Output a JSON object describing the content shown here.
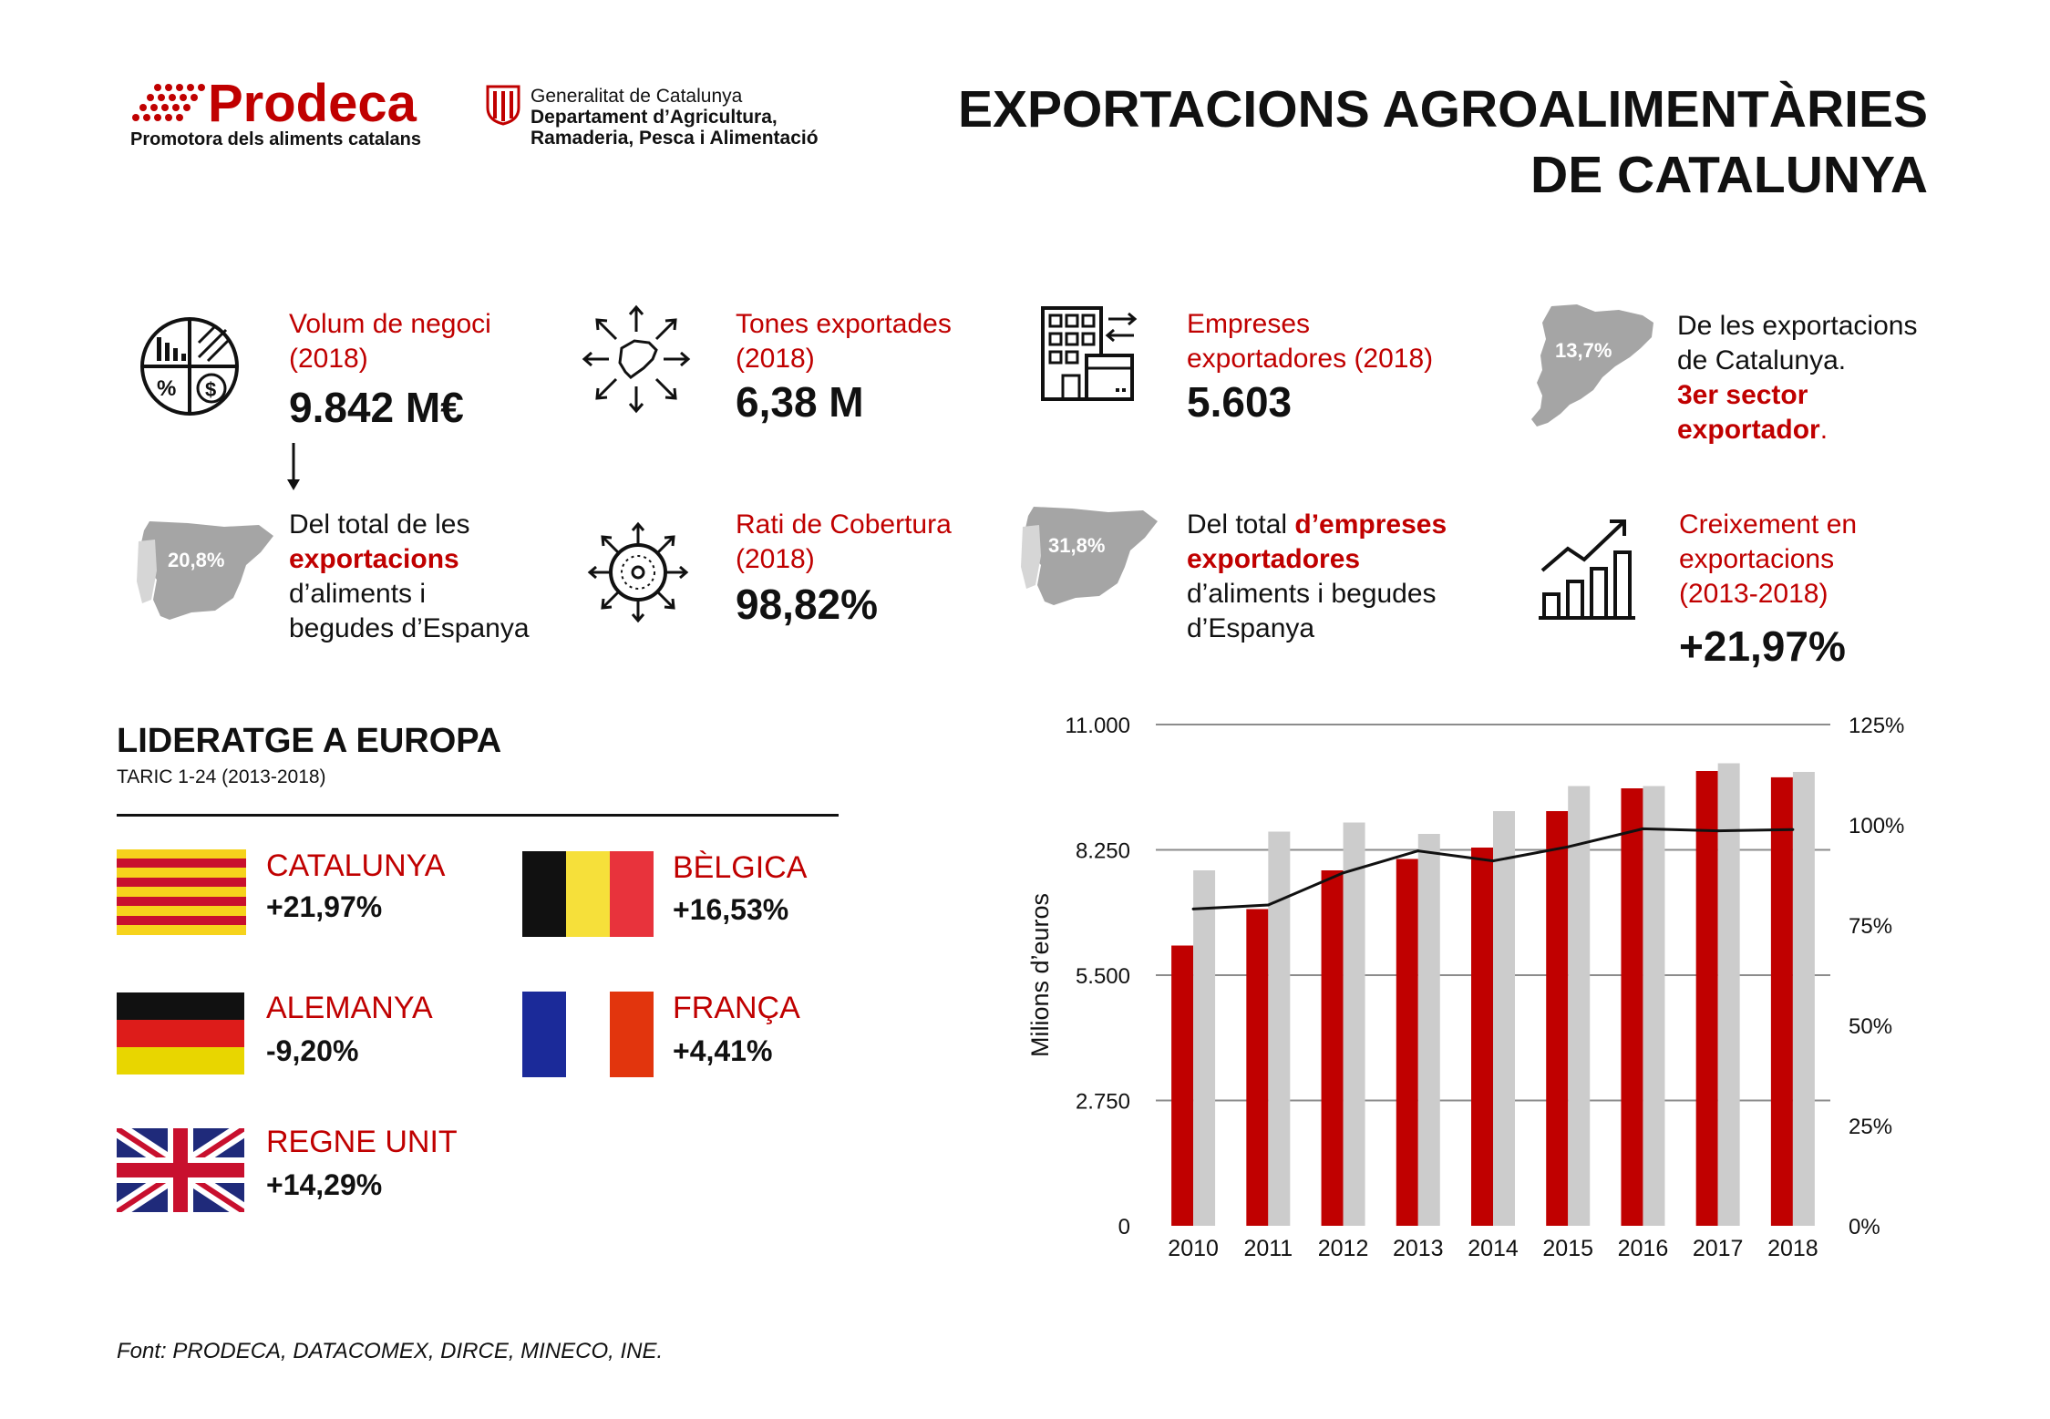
{
  "header": {
    "prodeca_name": "Prodeca",
    "prodeca_tagline": "Promotora dels aliments catalans",
    "gen_line1": "Generalitat de Catalunya",
    "gen_line2": "Departament d’Agricultura,",
    "gen_line3": "Ramaderia, Pesca i Alimentació",
    "title_line1": "EXPORTACIONS  AGROALIMENTÀRIES",
    "title_line2": "DE CATALUNYA"
  },
  "stats": {
    "volum": {
      "label1": "Volum de negoci",
      "label2": "(2018)",
      "value": "9.842 M€"
    },
    "tones": {
      "label1": "Tones exportades",
      "label2": "(2018)",
      "value": "6,38 M"
    },
    "empreses": {
      "label1": "Empreses",
      "label2": "exportadores (2018)",
      "value": "5.603"
    },
    "cat_share": {
      "badge": "13,7%",
      "line1": "De les exportacions",
      "line2": "de Catalunya.",
      "line3": "3er sector",
      "line4": "exportador",
      "line4_end": "."
    },
    "spain_share": {
      "badge": "20,8%",
      "line1": "Del total de les",
      "line2": "exportacions",
      "line3": "d’aliments i",
      "line4": "begudes d’Espanya"
    },
    "cobertura": {
      "label1": "Rati de Cobertura",
      "label2": "(2018)",
      "value": "98,82%"
    },
    "empreses_share": {
      "badge": "31,8%",
      "line1_a": "Del total ",
      "line1_b": "d’empreses",
      "line2": "exportadores",
      "line3": "d’aliments i begudes",
      "line4": "d’Espanya"
    },
    "creixement": {
      "label1": "Creixement en",
      "label2": "exportacions",
      "label3": "(2013-2018)",
      "value": "+21,97%"
    }
  },
  "leadership": {
    "title": "LIDERATGE A EUROPA",
    "subtitle": "TARIC 1-24 (2013-2018)",
    "countries": [
      {
        "name": "CATALUNYA",
        "growth": "+21,97%"
      },
      {
        "name": "BÈLGICA",
        "growth": "+16,53%"
      },
      {
        "name": "ALEMANYA",
        "growth": "-9,20%"
      },
      {
        "name": "FRANÇA",
        "growth": "+4,41%"
      },
      {
        "name": "REGNE UNIT",
        "growth": "+14,29%"
      }
    ]
  },
  "source": "Font: PRODECA, DATACOMEX, DIRCE, MINECO, INE.",
  "colors": {
    "accent": "#c00000",
    "bar_gray": "#cccccc"
  },
  "chart_data": {
    "type": "bar",
    "categories": [
      "2010",
      "2011",
      "2012",
      "2013",
      "2014",
      "2015",
      "2016",
      "2017",
      "2018"
    ],
    "series": [
      {
        "values": [
          6150,
          6950,
          7800,
          8050,
          8300,
          9100,
          9600,
          9980,
          9842
        ],
        "color": "#c00000"
      },
      {
        "values": [
          7800,
          8650,
          8850,
          8600,
          9100,
          9650,
          9650,
          10150,
          9960
        ],
        "color": "#cccccc"
      },
      {
        "type": "line",
        "axis": "right",
        "values": [
          79,
          80,
          88,
          93.5,
          91,
          94.5,
          99,
          98.5,
          98.82
        ],
        "color": "#111111"
      }
    ],
    "ylabel": "Milions d’euros",
    "ylim": [
      0,
      11000
    ],
    "y_ticks": [
      "0",
      "2.750",
      "5.500",
      "8.250",
      "11.000"
    ],
    "y_tick_values": [
      0,
      2750,
      5500,
      8250,
      11000
    ],
    "y2lim": [
      0,
      125
    ],
    "y2_ticks": [
      "0%",
      "25%",
      "50%",
      "75%",
      "100%",
      "125%"
    ],
    "y2_tick_values": [
      0,
      25,
      50,
      75,
      100,
      125
    ],
    "grid": true
  }
}
